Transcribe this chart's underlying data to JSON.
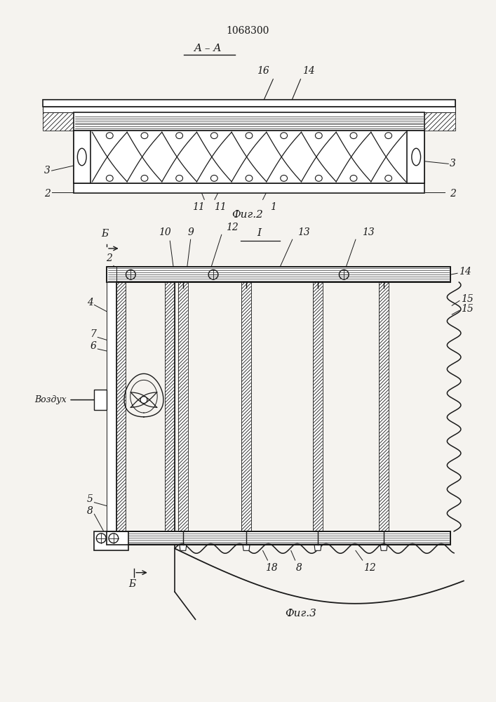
{
  "patent_number": "1068300",
  "fig2_label": "Фиг.2",
  "fig3_label": "Фиг.3",
  "section_label": "A – A",
  "view_label_I": "I",
  "view_label_B": "Б",
  "air_label": "Воздух",
  "bg_color": "#f5f3ef",
  "line_color": "#1a1a1a"
}
